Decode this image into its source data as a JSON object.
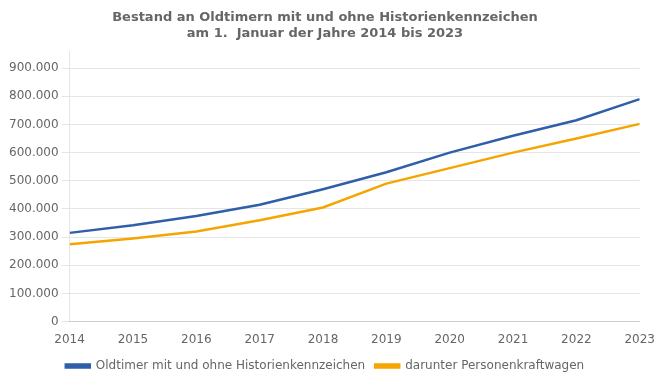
{
  "chart_data": {
    "type": "line",
    "title": "Bestand an Oldtimern mit und ohne Historienkennzeichen\nam 1.  Januar der Jahre 2014 bis 2023",
    "x": [
      2014,
      2015,
      2016,
      2017,
      2018,
      2019,
      2020,
      2021,
      2022,
      2023
    ],
    "series": [
      {
        "name": "Oldtimer mit und ohne Historienkennzeichen",
        "color": "#2E5FA8",
        "values": [
          315000,
          342000,
          375000,
          415000,
          470000,
          530000,
          600000,
          660000,
          715000,
          790000
        ]
      },
      {
        "name": "darunter Personenkraftwagen",
        "color": "#F5A500",
        "values": [
          275000,
          295000,
          320000,
          360000,
          405000,
          490000,
          545000,
          600000,
          650000,
          702000
        ]
      }
    ],
    "xlim": [
      2014,
      2023
    ],
    "xticks": [
      2014,
      2015,
      2016,
      2017,
      2018,
      2019,
      2020,
      2021,
      2022,
      2023
    ],
    "ylim": [
      0,
      960000
    ],
    "yticks": [
      0,
      {
        "value": 100000,
        "label": "100.000"
      },
      {
        "value": 200000,
        "label": "200.000"
      },
      {
        "value": 300000,
        "label": "300.000"
      },
      {
        "value": 400000,
        "label": "400.000"
      },
      {
        "value": 500000,
        "label": "500.000"
      },
      {
        "value": 600000,
        "label": "600.000"
      },
      {
        "value": 700000,
        "label": "700.000"
      },
      {
        "value": 800000,
        "label": "800.000"
      },
      {
        "value": 900000,
        "label": "900.000"
      }
    ],
    "grid": true,
    "legend": "bottom"
  }
}
